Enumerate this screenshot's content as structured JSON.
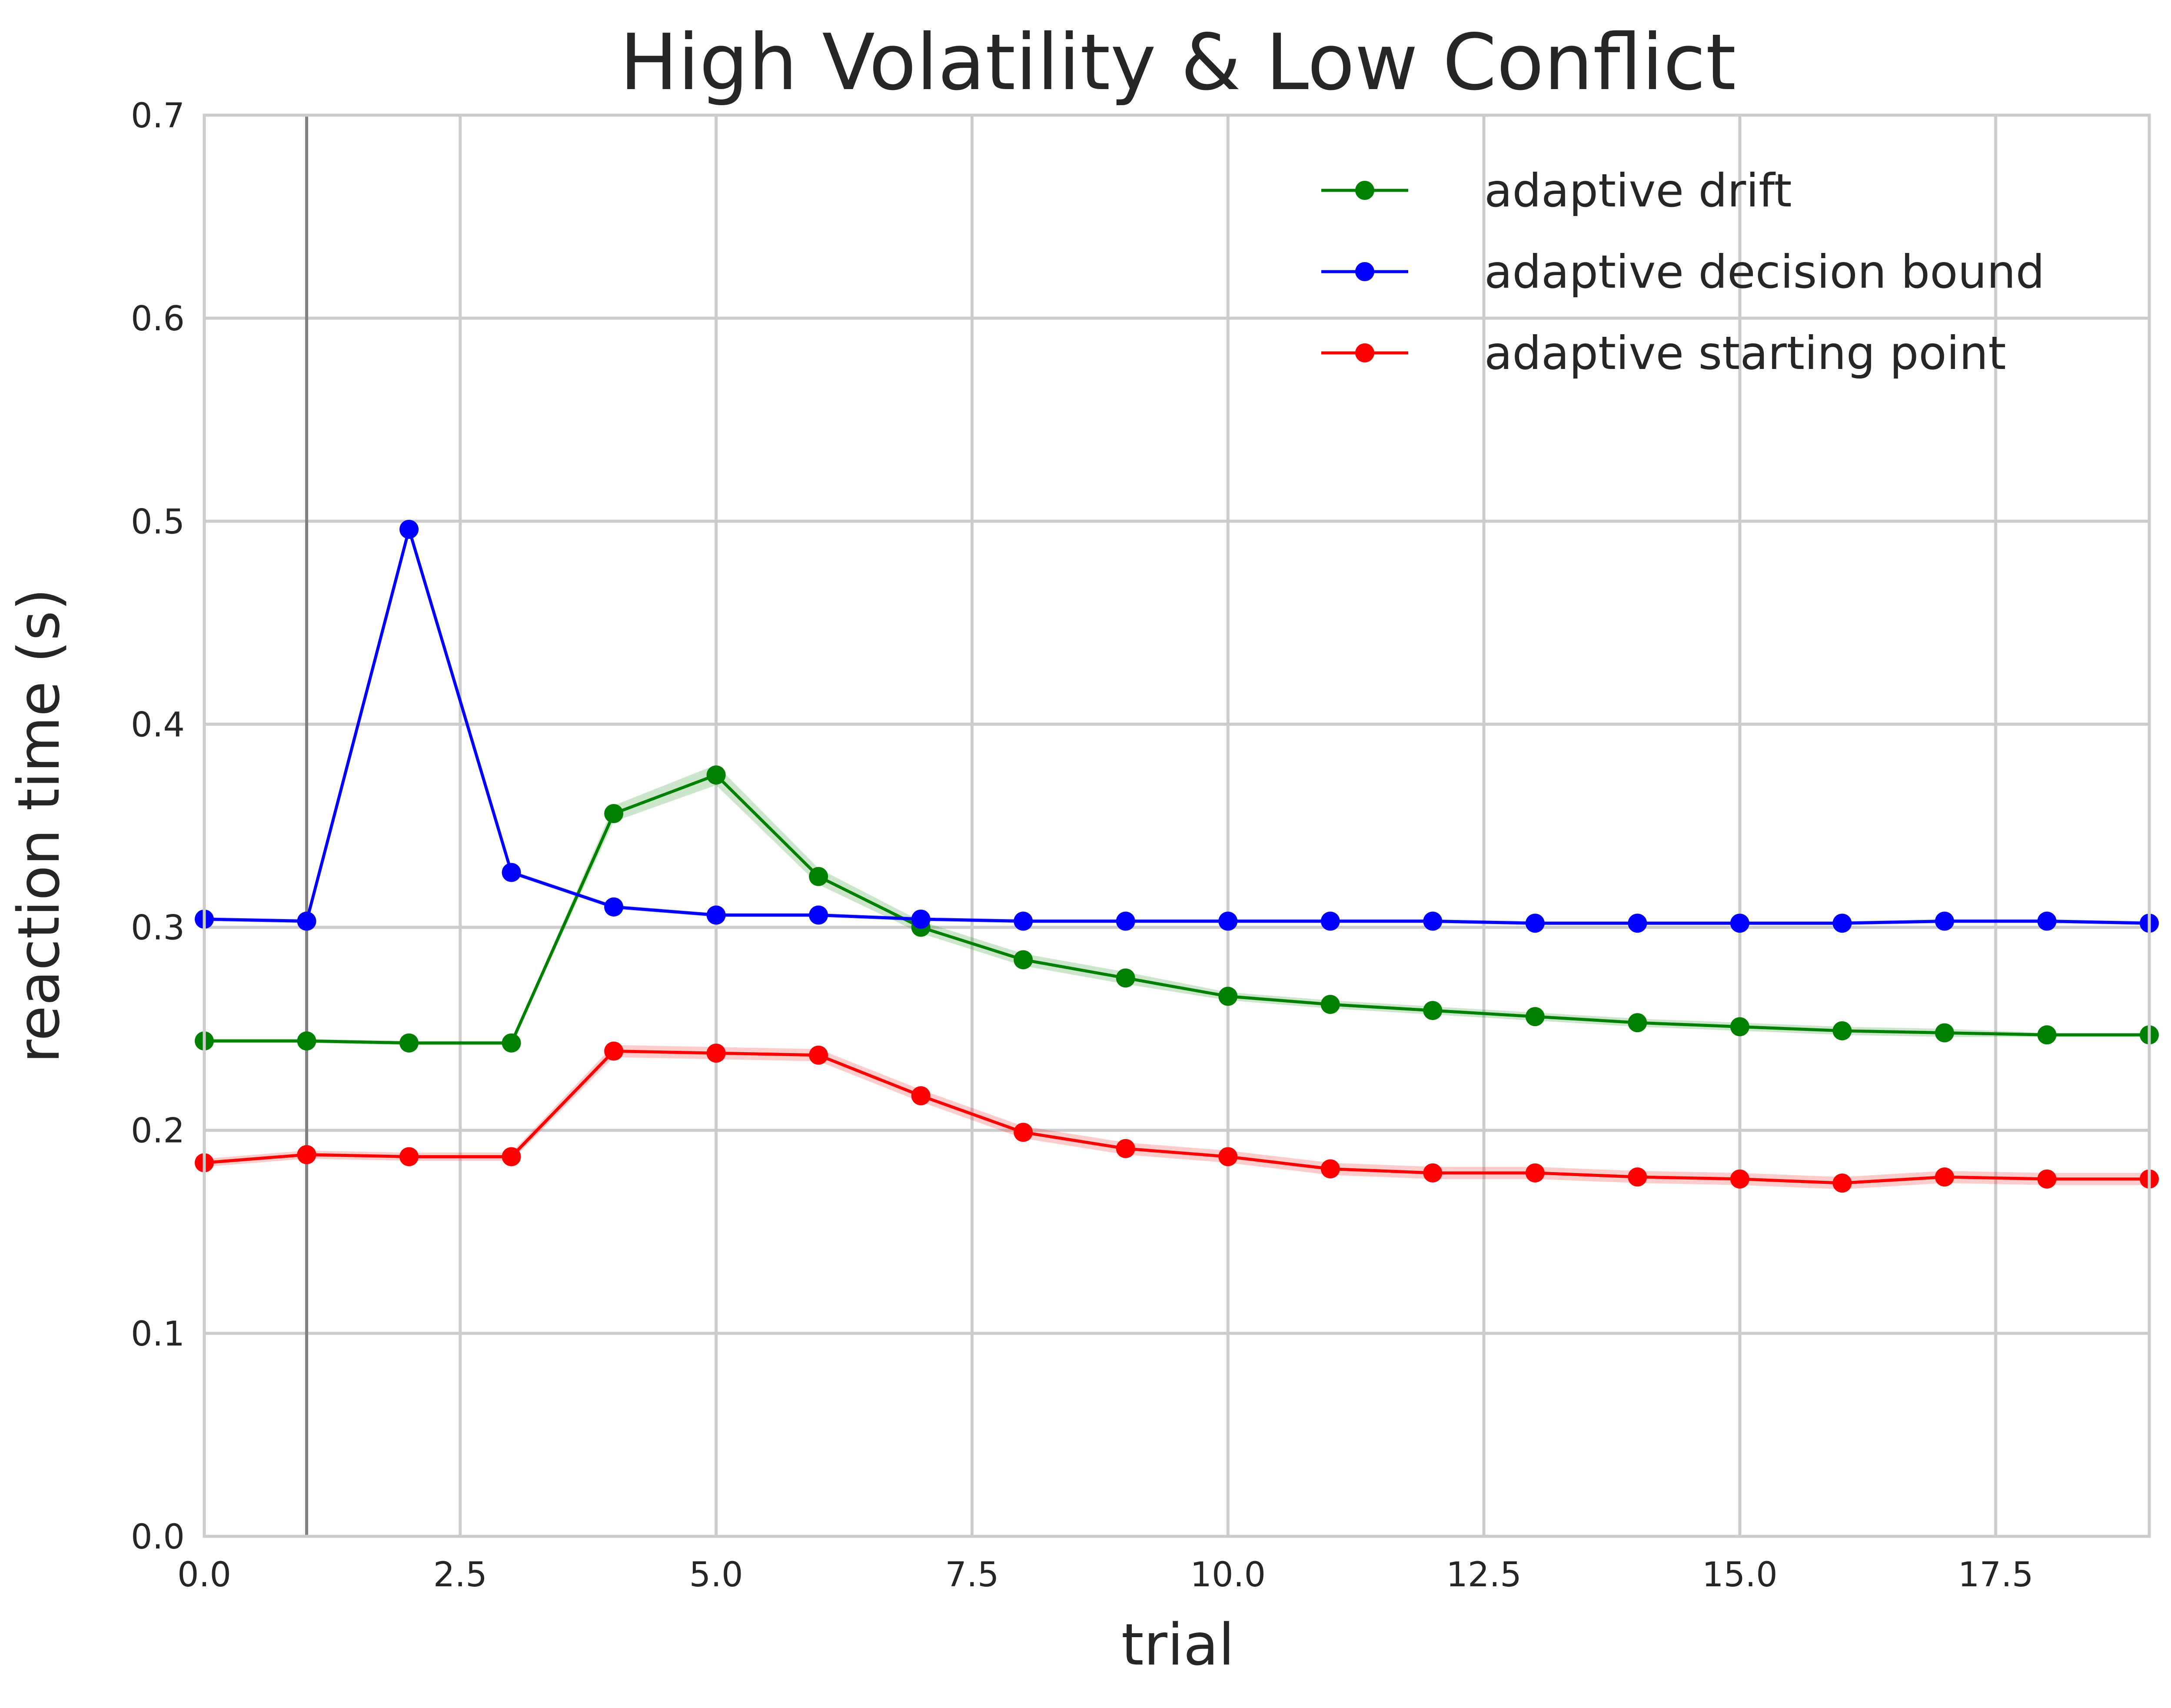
{
  "chart_data": {
    "type": "line",
    "title": "High Volatility & Low Conflict",
    "xlabel": "trial",
    "ylabel": "reaction time (s)",
    "xlim": [
      0,
      19
    ],
    "ylim": [
      0,
      0.7
    ],
    "x_ticks": [
      0.0,
      2.5,
      5.0,
      7.5,
      10.0,
      12.5,
      15.0,
      17.5
    ],
    "x_tick_labels": [
      "0.0",
      "2.5",
      "5.0",
      "7.5",
      "10.0",
      "12.5",
      "15.0",
      "17.5"
    ],
    "y_ticks": [
      0.0,
      0.1,
      0.2,
      0.3,
      0.4,
      0.5,
      0.6,
      0.7
    ],
    "y_tick_labels": [
      "0.0",
      "0.1",
      "0.2",
      "0.3",
      "0.4",
      "0.5",
      "0.6",
      "0.7"
    ],
    "grid": true,
    "legend_position": "top-right",
    "vertical_reference_line_x": 1,
    "x": [
      0,
      1,
      2,
      3,
      4,
      5,
      6,
      7,
      8,
      9,
      10,
      11,
      12,
      13,
      14,
      15,
      16,
      17,
      18,
      19
    ],
    "series": [
      {
        "name": "adaptive drift",
        "color": "#008000",
        "values": [
          0.244,
          0.244,
          0.243,
          0.243,
          0.356,
          0.375,
          0.325,
          0.3,
          0.284,
          0.275,
          0.266,
          0.262,
          0.259,
          0.256,
          0.253,
          0.251,
          0.249,
          0.248,
          0.247,
          0.247
        ],
        "band": [
          0.001,
          0.001,
          0.001,
          0.001,
          0.004,
          0.005,
          0.004,
          0.003,
          0.003,
          0.003,
          0.002,
          0.002,
          0.002,
          0.002,
          0.002,
          0.002,
          0.002,
          0.002,
          0.001,
          0.001
        ]
      },
      {
        "name": "adaptive decision bound",
        "color": "#0000ff",
        "values": [
          0.304,
          0.303,
          0.496,
          0.327,
          0.31,
          0.306,
          0.306,
          0.304,
          0.303,
          0.303,
          0.303,
          0.303,
          0.303,
          0.302,
          0.302,
          0.302,
          0.302,
          0.303,
          0.303,
          0.302
        ],
        "band": [
          0.001,
          0.001,
          0.001,
          0.001,
          0.001,
          0.001,
          0.001,
          0.001,
          0.001,
          0.001,
          0.001,
          0.001,
          0.001,
          0.001,
          0.001,
          0.001,
          0.001,
          0.001,
          0.001,
          0.001
        ]
      },
      {
        "name": "adaptive starting point",
        "color": "#ff0000",
        "values": [
          0.184,
          0.188,
          0.187,
          0.187,
          0.239,
          0.238,
          0.237,
          0.217,
          0.199,
          0.191,
          0.187,
          0.181,
          0.179,
          0.179,
          0.177,
          0.176,
          0.174,
          0.177,
          0.176,
          0.176
        ],
        "band": [
          0.002,
          0.002,
          0.002,
          0.002,
          0.003,
          0.003,
          0.003,
          0.003,
          0.003,
          0.003,
          0.003,
          0.003,
          0.003,
          0.003,
          0.003,
          0.003,
          0.003,
          0.003,
          0.003,
          0.003
        ]
      }
    ]
  }
}
